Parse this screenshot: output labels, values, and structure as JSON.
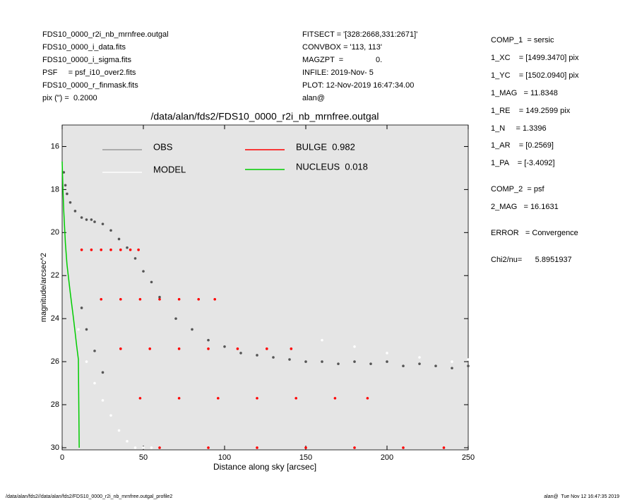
{
  "chart_data": {
    "type": "scatter",
    "title": "/data/alan/fds2/FDS10_0000_r2i_nb_mrnfree.outgal",
    "x_label": "Distance along sky [arcsec]",
    "y_label": "magnitude/arcsec^2",
    "xlim": [
      0,
      250
    ],
    "xticks": [
      0,
      50,
      100,
      150,
      200,
      250
    ],
    "ylim": [
      30.1,
      15
    ],
    "yticks": [
      16,
      18,
      20,
      22,
      24,
      26,
      28,
      30
    ],
    "background": "#e5e5e5",
    "series": [
      {
        "name": "OBS",
        "color": "#555555",
        "legend_color": "#999999",
        "kind": "points",
        "x": [
          1,
          2,
          3,
          5,
          8,
          12,
          15,
          18,
          20,
          25,
          30,
          35,
          40,
          45,
          50,
          55,
          60,
          70,
          80,
          90,
          100,
          110,
          120,
          130,
          140,
          150,
          160,
          170,
          180,
          190,
          200,
          210,
          220,
          230,
          240,
          250,
          12,
          15,
          20,
          25
        ],
        "values": [
          17.2,
          17.8,
          18.2,
          18.6,
          19.0,
          19.3,
          19.4,
          19.4,
          19.5,
          19.6,
          19.9,
          20.3,
          20.7,
          21.2,
          21.8,
          22.3,
          23.0,
          24.0,
          24.5,
          25.0,
          25.3,
          25.6,
          25.7,
          25.8,
          25.9,
          26.0,
          26.0,
          26.1,
          26.0,
          26.1,
          26.0,
          26.2,
          26.1,
          26.2,
          26.3,
          26.2,
          23.5,
          24.5,
          25.5,
          26.5
        ]
      },
      {
        "name": "MODEL",
        "color": "#ffffff",
        "legend_color": "#ffffff",
        "kind": "points",
        "x": [
          10,
          15,
          20,
          25,
          30,
          35,
          40,
          45,
          50,
          55,
          160,
          180,
          200,
          220,
          240,
          250
        ],
        "values": [
          24.5,
          26.0,
          27.0,
          27.8,
          28.5,
          29.2,
          29.7,
          30.0,
          30.0,
          30.0,
          25.0,
          25.3,
          25.6,
          25.8,
          26.0,
          25.9
        ]
      },
      {
        "name": "BULGE  0.982",
        "color": "#ff0000",
        "legend_color": "#ff0000",
        "kind": "points",
        "x": [
          12,
          24,
          36,
          48,
          60,
          18,
          36,
          54,
          72,
          90,
          24,
          48,
          72,
          96,
          120,
          30,
          60,
          90,
          120,
          150,
          36,
          72,
          108,
          144,
          180,
          42,
          84,
          126,
          168,
          210,
          47,
          94,
          141,
          188,
          235
        ],
        "values": [
          20.8,
          23.1,
          25.4,
          27.7,
          30,
          20.8,
          23.1,
          25.4,
          27.7,
          30,
          20.8,
          23.1,
          25.4,
          27.7,
          30,
          20.8,
          23.1,
          25.4,
          27.7,
          30,
          20.8,
          23.1,
          25.4,
          27.7,
          30,
          20.8,
          23.1,
          25.4,
          27.7,
          30,
          20.8,
          23.1,
          25.4,
          27.7,
          30
        ]
      },
      {
        "name": "NUCLEUS  0.018",
        "color": "#00cc00",
        "legend_color": "#00cc00",
        "kind": "line",
        "x": [
          0,
          0.5,
          1,
          2,
          3,
          5,
          7,
          9,
          10,
          10,
          10.5
        ],
        "values": [
          16.7,
          18,
          19,
          20.5,
          21.5,
          22.8,
          24,
          25.3,
          25.9,
          26.0,
          30
        ]
      }
    ],
    "info_left": [
      "FDS10_0000_r2i_nb_mrnfree.outgal",
      "FDS10_0000_i_data.fits",
      "FDS10_0000_i_sigma.fits",
      "PSF     = psf_i10_over2.fits",
      "FDS10_0000_r_finmask.fits",
      "pix (\") =  0.2000"
    ],
    "info_middle": [
      "FITSECT = '[328:2668,331:2671]'",
      "CONVBOX = '113, 113'",
      "MAGZPT  =               0.",
      "INFILE: 2019-Nov- 5",
      "PLOT: 12-Nov-2019 16:47:34.00",
      "alan@"
    ],
    "info_right": [
      "COMP_1  = sersic",
      "1_XC    = [1499.3470] pix",
      "1_YC    = [1502.0940] pix",
      "1_MAG   = 11.8348",
      "1_RE    = 149.2599 pix",
      "1_N     = 1.3396",
      "1_AR    = [0.2569]",
      "1_PA    = [-3.4092]",
      "COMP_2  = psf",
      "2_MAG   = 16.1631",
      "ERROR   = Convergence",
      "Chi2/nu=      5.8951937"
    ],
    "footer_left": "/data/alan/fds2//data/alan/fds2/FDS10_0000_r2i_nb_mrnfree.outgal_profile2",
    "footer_right": "alan@  Tue Nov 12 16:47:35 2019"
  }
}
